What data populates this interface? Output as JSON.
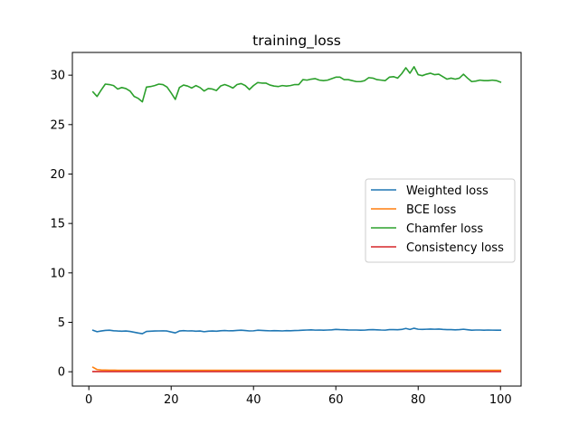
{
  "chart_data": {
    "type": "line",
    "title": "training_loss",
    "xlabel": "",
    "ylabel": "",
    "xlim": [
      -4,
      105
    ],
    "ylim": [
      -1.45,
      32.3
    ],
    "xticks": [
      0,
      20,
      40,
      60,
      80,
      100
    ],
    "yticks": [
      0,
      5,
      10,
      15,
      20,
      25,
      30
    ],
    "grid": false,
    "legend_position": "center-right",
    "series": [
      {
        "name": "Weighted loss",
        "color": "#1f77b4",
        "x": [
          1,
          2,
          3,
          4,
          5,
          6,
          7,
          8,
          9,
          10,
          11,
          12,
          13,
          14,
          15,
          16,
          17,
          18,
          19,
          20,
          21,
          22,
          23,
          24,
          25,
          26,
          27,
          28,
          29,
          30,
          31,
          32,
          33,
          34,
          35,
          36,
          37,
          38,
          39,
          40,
          41,
          42,
          43,
          44,
          45,
          46,
          47,
          48,
          49,
          50,
          51,
          52,
          53,
          54,
          55,
          56,
          57,
          58,
          59,
          60,
          61,
          62,
          63,
          64,
          65,
          66,
          67,
          68,
          69,
          70,
          71,
          72,
          73,
          74,
          75,
          76,
          77,
          78,
          79,
          80,
          81,
          82,
          83,
          84,
          85,
          86,
          87,
          88,
          89,
          90,
          91,
          92,
          93,
          94,
          95,
          96,
          97,
          98,
          99,
          100
        ],
        "values": [
          4.2,
          4.05,
          4.12,
          4.18,
          4.2,
          4.15,
          4.12,
          4.1,
          4.12,
          4.08,
          4.0,
          3.92,
          3.85,
          4.08,
          4.1,
          4.12,
          4.13,
          4.14,
          4.12,
          4.02,
          3.93,
          4.12,
          4.16,
          4.13,
          4.14,
          4.1,
          4.12,
          4.05,
          4.1,
          4.12,
          4.1,
          4.15,
          4.17,
          4.14,
          4.15,
          4.18,
          4.2,
          4.17,
          4.13,
          4.14,
          4.2,
          4.18,
          4.16,
          4.14,
          4.16,
          4.15,
          4.13,
          4.16,
          4.15,
          4.17,
          4.18,
          4.2,
          4.22,
          4.24,
          4.21,
          4.22,
          4.2,
          4.22,
          4.24,
          4.28,
          4.26,
          4.25,
          4.23,
          4.22,
          4.22,
          4.2,
          4.21,
          4.25,
          4.26,
          4.24,
          4.22,
          4.21,
          4.26,
          4.26,
          4.25,
          4.28,
          4.38,
          4.28,
          4.4,
          4.3,
          4.28,
          4.3,
          4.32,
          4.3,
          4.32,
          4.28,
          4.26,
          4.26,
          4.24,
          4.26,
          4.3,
          4.25,
          4.2,
          4.22,
          4.22,
          4.2,
          4.22,
          4.21,
          4.2,
          4.2
        ]
      },
      {
        "name": "BCE loss",
        "color": "#ff7f0e",
        "x": [
          1,
          2,
          3,
          4,
          5,
          6,
          7,
          8,
          9,
          10,
          11,
          12,
          13,
          14,
          15,
          16,
          17,
          18,
          19,
          20,
          21,
          22,
          23,
          24,
          25,
          26,
          27,
          28,
          29,
          30,
          31,
          32,
          33,
          34,
          35,
          36,
          37,
          38,
          39,
          40,
          41,
          42,
          43,
          44,
          45,
          46,
          47,
          48,
          49,
          50,
          51,
          52,
          53,
          54,
          55,
          56,
          57,
          58,
          59,
          60,
          61,
          62,
          63,
          64,
          65,
          66,
          67,
          68,
          69,
          70,
          71,
          72,
          73,
          74,
          75,
          76,
          77,
          78,
          79,
          80,
          81,
          82,
          83,
          84,
          85,
          86,
          87,
          88,
          89,
          90,
          91,
          92,
          93,
          94,
          95,
          96,
          97,
          98,
          99,
          100
        ],
        "values": [
          0.45,
          0.22,
          0.18,
          0.17,
          0.16,
          0.16,
          0.15,
          0.15,
          0.15,
          0.15,
          0.15,
          0.15,
          0.15,
          0.15,
          0.15,
          0.15,
          0.15,
          0.15,
          0.15,
          0.15,
          0.15,
          0.15,
          0.15,
          0.15,
          0.15,
          0.15,
          0.15,
          0.15,
          0.15,
          0.15,
          0.15,
          0.15,
          0.15,
          0.15,
          0.15,
          0.15,
          0.15,
          0.15,
          0.15,
          0.15,
          0.15,
          0.15,
          0.15,
          0.15,
          0.15,
          0.15,
          0.15,
          0.15,
          0.15,
          0.15,
          0.15,
          0.15,
          0.15,
          0.15,
          0.15,
          0.15,
          0.15,
          0.15,
          0.15,
          0.15,
          0.15,
          0.15,
          0.15,
          0.15,
          0.15,
          0.15,
          0.15,
          0.15,
          0.15,
          0.15,
          0.15,
          0.15,
          0.15,
          0.15,
          0.15,
          0.15,
          0.15,
          0.15,
          0.15,
          0.15,
          0.15,
          0.15,
          0.15,
          0.15,
          0.15,
          0.15,
          0.15,
          0.15,
          0.15,
          0.15,
          0.15,
          0.15,
          0.15,
          0.15,
          0.15,
          0.15,
          0.15,
          0.15,
          0.15,
          0.15
        ]
      },
      {
        "name": "Chamfer loss",
        "color": "#2ca02c",
        "x": [
          1,
          2,
          3,
          4,
          5,
          6,
          7,
          8,
          9,
          10,
          11,
          12,
          13,
          14,
          15,
          16,
          17,
          18,
          19,
          20,
          21,
          22,
          23,
          24,
          25,
          26,
          27,
          28,
          29,
          30,
          31,
          32,
          33,
          34,
          35,
          36,
          37,
          38,
          39,
          40,
          41,
          42,
          43,
          44,
          45,
          46,
          47,
          48,
          49,
          50,
          51,
          52,
          53,
          54,
          55,
          56,
          57,
          58,
          59,
          60,
          61,
          62,
          63,
          64,
          65,
          66,
          67,
          68,
          69,
          70,
          71,
          72,
          73,
          74,
          75,
          76,
          77,
          78,
          79,
          80,
          81,
          82,
          83,
          84,
          85,
          86,
          87,
          88,
          89,
          90,
          91,
          92,
          93,
          94,
          95,
          96,
          97,
          98,
          99,
          100
        ],
        "values": [
          28.3,
          27.85,
          28.5,
          29.1,
          29.05,
          28.95,
          28.6,
          28.75,
          28.65,
          28.4,
          27.85,
          27.65,
          27.3,
          28.8,
          28.85,
          28.95,
          29.1,
          29.05,
          28.8,
          28.2,
          27.55,
          28.75,
          29.0,
          28.9,
          28.7,
          28.95,
          28.75,
          28.4,
          28.65,
          28.6,
          28.45,
          28.9,
          29.05,
          28.9,
          28.7,
          29.05,
          29.15,
          28.95,
          28.55,
          28.95,
          29.25,
          29.2,
          29.2,
          29.0,
          28.9,
          28.85,
          28.95,
          28.9,
          28.95,
          29.05,
          29.05,
          29.55,
          29.5,
          29.6,
          29.65,
          29.5,
          29.45,
          29.5,
          29.65,
          29.8,
          29.8,
          29.55,
          29.55,
          29.45,
          29.35,
          29.35,
          29.45,
          29.75,
          29.7,
          29.55,
          29.5,
          29.45,
          29.8,
          29.85,
          29.7,
          30.15,
          30.75,
          30.2,
          30.85,
          30.05,
          29.95,
          30.1,
          30.2,
          30.05,
          30.1,
          29.85,
          29.6,
          29.7,
          29.6,
          29.7,
          30.1,
          29.7,
          29.35,
          29.4,
          29.5,
          29.45,
          29.45,
          29.5,
          29.45,
          29.3
        ]
      },
      {
        "name": "Consistency loss",
        "color": "#d62728",
        "x": [
          1,
          2,
          3,
          4,
          5,
          6,
          7,
          8,
          9,
          10,
          11,
          12,
          13,
          14,
          15,
          16,
          17,
          18,
          19,
          20,
          21,
          22,
          23,
          24,
          25,
          26,
          27,
          28,
          29,
          30,
          31,
          32,
          33,
          34,
          35,
          36,
          37,
          38,
          39,
          40,
          41,
          42,
          43,
          44,
          45,
          46,
          47,
          48,
          49,
          50,
          51,
          52,
          53,
          54,
          55,
          56,
          57,
          58,
          59,
          60,
          61,
          62,
          63,
          64,
          65,
          66,
          67,
          68,
          69,
          70,
          71,
          72,
          73,
          74,
          75,
          76,
          77,
          78,
          79,
          80,
          81,
          82,
          83,
          84,
          85,
          86,
          87,
          88,
          89,
          90,
          91,
          92,
          93,
          94,
          95,
          96,
          97,
          98,
          99,
          100
        ],
        "values": [
          0.02,
          0.02,
          0.02,
          0.02,
          0.02,
          0.02,
          0.02,
          0.02,
          0.02,
          0.02,
          0.02,
          0.02,
          0.02,
          0.02,
          0.02,
          0.02,
          0.02,
          0.02,
          0.02,
          0.02,
          0.02,
          0.02,
          0.02,
          0.02,
          0.02,
          0.02,
          0.02,
          0.02,
          0.02,
          0.02,
          0.02,
          0.02,
          0.02,
          0.02,
          0.02,
          0.02,
          0.02,
          0.02,
          0.02,
          0.02,
          0.02,
          0.02,
          0.02,
          0.02,
          0.02,
          0.02,
          0.02,
          0.02,
          0.02,
          0.02,
          0.02,
          0.02,
          0.02,
          0.02,
          0.02,
          0.02,
          0.02,
          0.02,
          0.02,
          0.02,
          0.02,
          0.02,
          0.02,
          0.02,
          0.02,
          0.02,
          0.02,
          0.02,
          0.02,
          0.02,
          0.02,
          0.02,
          0.02,
          0.02,
          0.02,
          0.02,
          0.02,
          0.02,
          0.02,
          0.02,
          0.02,
          0.02,
          0.02,
          0.02,
          0.02,
          0.02,
          0.02,
          0.02,
          0.02,
          0.02,
          0.02,
          0.02,
          0.02,
          0.02,
          0.02,
          0.02,
          0.02,
          0.02,
          0.02,
          0.02
        ]
      }
    ]
  }
}
